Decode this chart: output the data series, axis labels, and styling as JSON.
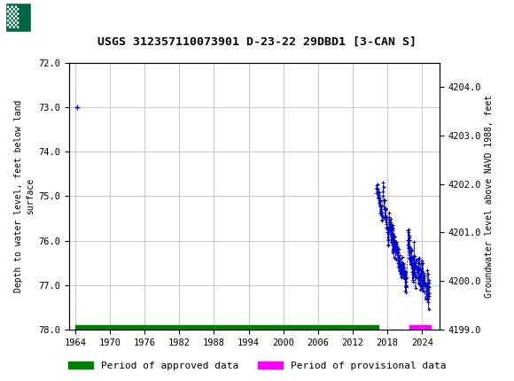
{
  "title": "USGS 312357110073901 D-23-22 29DBD1 [3-CAN S]",
  "ylabel_left": "Depth to water level, feet below land\nsurface",
  "ylabel_right": "Groundwater level above NAVD 1988, feet",
  "ylim_left": [
    78.0,
    72.0
  ],
  "ylim_right_bottom": 4199.0,
  "ylim_right_top": 4204.5,
  "yticks_left": [
    72.0,
    73.0,
    74.0,
    75.0,
    76.0,
    77.0,
    78.0
  ],
  "yticks_right": [
    4199.0,
    4200.0,
    4201.0,
    4202.0,
    4203.0,
    4204.0
  ],
  "xlim": [
    1963.0,
    2027.0
  ],
  "xticks": [
    1964,
    1970,
    1976,
    1982,
    1988,
    1994,
    2000,
    2006,
    2012,
    2018,
    2024
  ],
  "header_color": "#006644",
  "background_color": "#ffffff",
  "plot_bg_color": "#ffffff",
  "grid_color": "#c8c8c8",
  "data_line_color": "#0000cc",
  "approved_bar_color": "#008000",
  "provisional_bar_color": "#ff00ff",
  "legend_approved": "Period of approved data",
  "legend_provisional": "Period of provisional data",
  "single_point_year": 1964.3,
  "single_point_depth": 73.0,
  "approved_bar_xstart": 1964.0,
  "approved_bar_xend": 2016.5,
  "provisional_bar_xstart": 2021.8,
  "provisional_bar_xend": 2025.5,
  "bar_y_center": 78.0,
  "bar_half_height": 0.09
}
